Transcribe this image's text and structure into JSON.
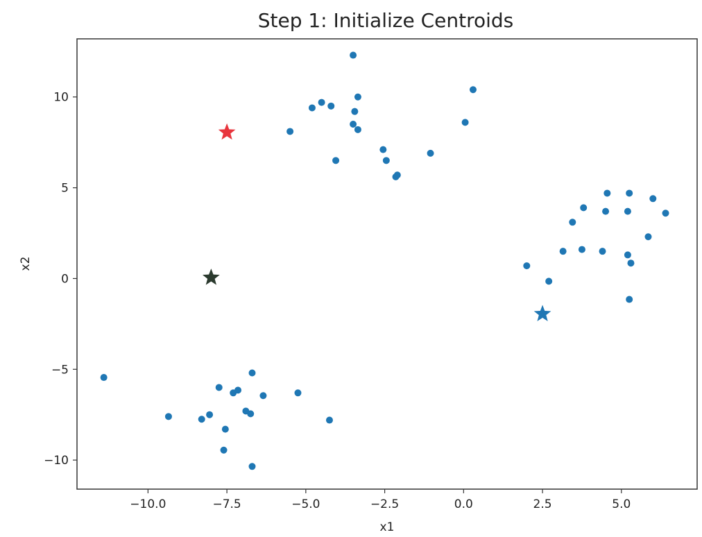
{
  "chart_data": {
    "type": "scatter",
    "title": "Step 1: Initialize Centroids",
    "xlabel": "x1",
    "ylabel": "x2",
    "xlim": [
      -12.25,
      7.4
    ],
    "ylim": [
      -11.6,
      13.2
    ],
    "grid": false,
    "x_ticks": [
      {
        "value": -10.0,
        "label": "−10.0"
      },
      {
        "value": -7.5,
        "label": "−7.5"
      },
      {
        "value": -5.0,
        "label": "−5.0"
      },
      {
        "value": -2.5,
        "label": "−2.5"
      },
      {
        "value": 0.0,
        "label": "0.0"
      },
      {
        "value": 2.5,
        "label": "2.5"
      },
      {
        "value": 5.0,
        "label": "5.0"
      }
    ],
    "y_ticks": [
      {
        "value": 10,
        "label": "10"
      },
      {
        "value": 5,
        "label": "5"
      },
      {
        "value": 0,
        "label": "0"
      },
      {
        "value": -5,
        "label": "−5"
      },
      {
        "value": -10,
        "label": "−10"
      }
    ],
    "series": [
      {
        "marker": "circle",
        "color": "#1f77b4",
        "points": [
          {
            "x": -3.5,
            "y": 12.3
          },
          {
            "x": 0.3,
            "y": 10.4
          },
          {
            "x": -4.8,
            "y": 9.4
          },
          {
            "x": -4.5,
            "y": 9.7
          },
          {
            "x": -4.2,
            "y": 9.5
          },
          {
            "x": -3.35,
            "y": 10.0
          },
          {
            "x": -3.45,
            "y": 9.2
          },
          {
            "x": -3.5,
            "y": 8.5
          },
          {
            "x": -3.35,
            "y": 8.2
          },
          {
            "x": 0.05,
            "y": 8.6
          },
          {
            "x": -5.5,
            "y": 8.1
          },
          {
            "x": -2.55,
            "y": 7.1
          },
          {
            "x": -2.45,
            "y": 6.5
          },
          {
            "x": -4.05,
            "y": 6.5
          },
          {
            "x": -1.05,
            "y": 6.9
          },
          {
            "x": -2.15,
            "y": 5.6
          },
          {
            "x": -2.1,
            "y": 5.7
          },
          {
            "x": 4.55,
            "y": 4.7
          },
          {
            "x": 5.25,
            "y": 4.7
          },
          {
            "x": 6.0,
            "y": 4.4
          },
          {
            "x": 3.8,
            "y": 3.9
          },
          {
            "x": 4.5,
            "y": 3.7
          },
          {
            "x": 5.2,
            "y": 3.7
          },
          {
            "x": 6.4,
            "y": 3.6
          },
          {
            "x": 3.45,
            "y": 3.1
          },
          {
            "x": 5.85,
            "y": 2.3
          },
          {
            "x": 3.15,
            "y": 1.5
          },
          {
            "x": 3.75,
            "y": 1.6
          },
          {
            "x": 4.4,
            "y": 1.5
          },
          {
            "x": 5.2,
            "y": 1.3
          },
          {
            "x": 5.3,
            "y": 0.85
          },
          {
            "x": 2.0,
            "y": 0.7
          },
          {
            "x": 2.7,
            "y": -0.15
          },
          {
            "x": 5.25,
            "y": -1.15
          },
          {
            "x": -11.4,
            "y": -5.45
          },
          {
            "x": -6.7,
            "y": -5.2
          },
          {
            "x": -7.75,
            "y": -6.0
          },
          {
            "x": -7.15,
            "y": -6.15
          },
          {
            "x": -7.3,
            "y": -6.3
          },
          {
            "x": -5.25,
            "y": -6.3
          },
          {
            "x": -6.35,
            "y": -6.45
          },
          {
            "x": -9.35,
            "y": -7.6
          },
          {
            "x": -8.05,
            "y": -7.5
          },
          {
            "x": -8.3,
            "y": -7.75
          },
          {
            "x": -6.9,
            "y": -7.3
          },
          {
            "x": -6.75,
            "y": -7.45
          },
          {
            "x": -4.25,
            "y": -7.8
          },
          {
            "x": -7.55,
            "y": -8.3
          },
          {
            "x": -7.6,
            "y": -9.45
          },
          {
            "x": -6.7,
            "y": -10.35
          }
        ]
      }
    ],
    "centroids": [
      {
        "x": -7.5,
        "y": 8.05,
        "marker": "star",
        "color": "#e8353d"
      },
      {
        "x": -8.0,
        "y": 0.05,
        "marker": "star",
        "color": "#2b3a2e"
      },
      {
        "x": 2.5,
        "y": -1.95,
        "marker": "star",
        "color": "#1f77b4"
      }
    ]
  }
}
